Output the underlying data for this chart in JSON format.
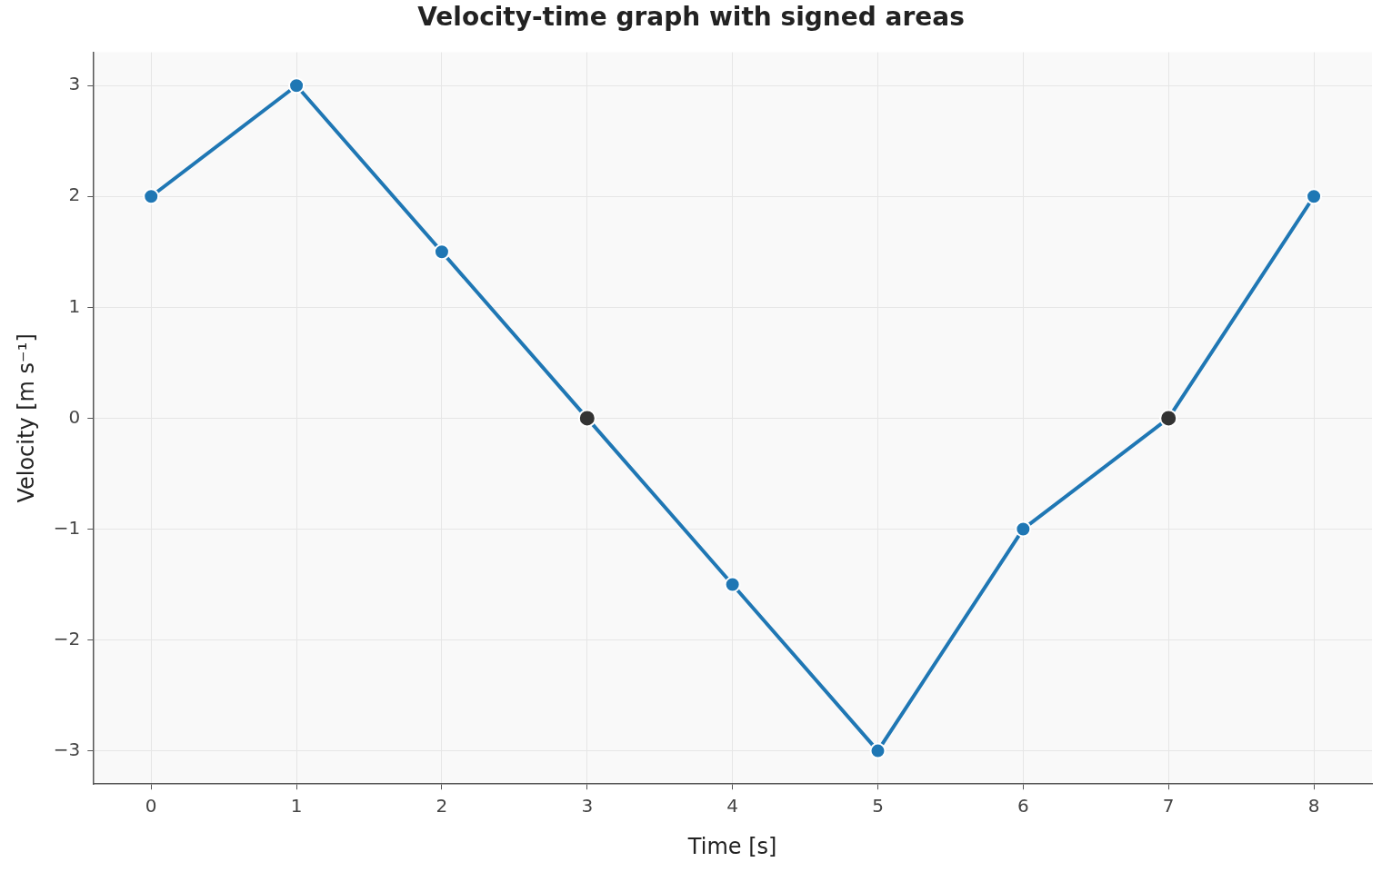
{
  "chart_data": {
    "type": "line",
    "title": "Velocity-time graph with signed areas",
    "xlabel": "Time [s]",
    "ylabel": "Velocity [m s⁻¹]",
    "series": [
      {
        "color": "#1f77b4",
        "x": [
          0,
          1,
          2,
          3,
          4,
          5,
          6,
          7,
          8
        ],
        "values": [
          2,
          3,
          1.5,
          0,
          -1.5,
          -3,
          -1,
          0,
          2
        ]
      },
      {
        "type": "scatter",
        "color": "#333333",
        "x": [
          3,
          7
        ],
        "values": [
          0,
          0
        ]
      }
    ],
    "xlim": [
      -0.4,
      8.4
    ],
    "xticks": [
      0,
      1,
      2,
      3,
      4,
      5,
      6,
      7,
      8
    ],
    "ylim": [
      -3.3,
      3.3
    ],
    "yticks": [
      {
        "value": -3,
        "label": "−3"
      },
      {
        "value": -2,
        "label": "−2"
      },
      {
        "value": -1,
        "label": "−1"
      },
      0,
      1,
      2,
      3
    ],
    "grid": true,
    "marker": "circle",
    "line_style": "solid"
  }
}
